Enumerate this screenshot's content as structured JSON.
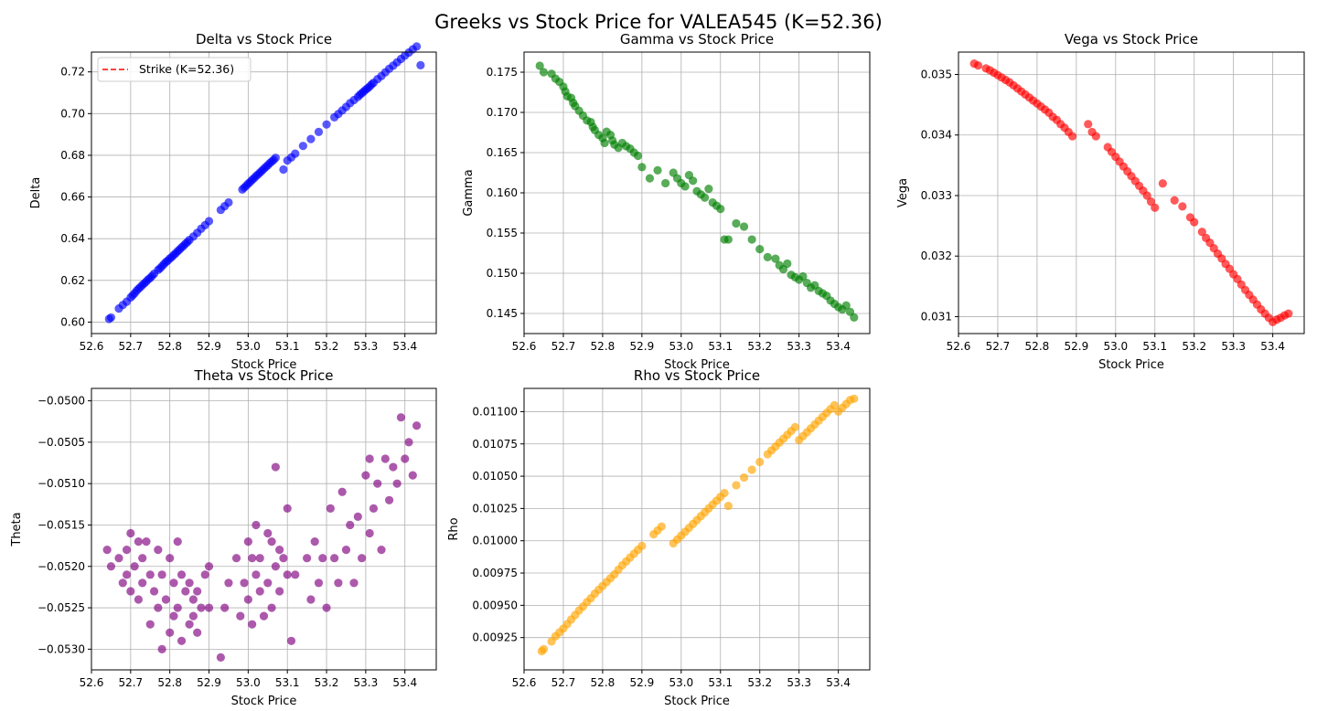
{
  "figure_title": "Greeks vs Stock Price for VALEA545 (K=52.36)",
  "chart_data": [
    {
      "id": "delta",
      "type": "scatter",
      "title": "Delta vs Stock Price",
      "xlabel": "Stock Price",
      "ylabel": "Delta",
      "xlim": [
        52.6,
        53.48
      ],
      "ylim": [
        0.5945,
        0.7295
      ],
      "xticks": [
        "52.6",
        "52.7",
        "52.8",
        "52.9",
        "53.0",
        "53.1",
        "53.2",
        "53.3",
        "53.4"
      ],
      "yticks": [
        "0.60",
        "0.62",
        "0.64",
        "0.66",
        "0.68",
        "0.70",
        "0.72"
      ],
      "grid": true,
      "color": "#0000ff",
      "legend": {
        "placement": "upper-left",
        "entries": [
          {
            "label": "Strike (K=52.36)",
            "color": "#ff0000",
            "style": "dashed"
          }
        ]
      },
      "trend": "linear-increasing",
      "x": [
        52.645,
        52.65,
        52.67,
        52.68,
        52.69,
        52.7,
        52.705,
        52.71,
        52.715,
        52.72,
        52.725,
        52.73,
        52.735,
        52.74,
        52.745,
        52.75,
        52.755,
        52.76,
        52.77,
        52.775,
        52.78,
        52.785,
        52.79,
        52.795,
        52.8,
        52.805,
        52.81,
        52.815,
        52.82,
        52.825,
        52.83,
        52.835,
        52.84,
        52.845,
        52.85,
        52.86,
        52.87,
        52.88,
        52.89,
        52.9,
        52.93,
        52.94,
        52.95,
        52.985,
        52.99,
        52.995,
        53.0,
        53.005,
        53.01,
        53.015,
        53.02,
        53.025,
        53.03,
        53.035,
        53.04,
        53.045,
        53.05,
        53.055,
        53.06,
        53.065,
        53.07,
        53.09,
        53.1,
        53.11,
        53.12,
        53.14,
        53.16,
        53.18,
        53.2,
        53.22,
        53.23,
        53.24,
        53.25,
        53.26,
        53.27,
        53.28,
        53.285,
        53.29,
        53.295,
        53.3,
        53.305,
        53.31,
        53.315,
        53.32,
        53.33,
        53.34,
        53.35,
        53.36,
        53.37,
        53.38,
        53.39,
        53.4,
        53.41,
        53.42,
        53.43,
        53.44
      ],
      "y": [
        0.6015,
        0.6022,
        0.6065,
        0.6082,
        0.6098,
        0.6118,
        0.6128,
        0.6138,
        0.615,
        0.616,
        0.6168,
        0.6178,
        0.6186,
        0.6195,
        0.6205,
        0.6212,
        0.6222,
        0.6232,
        0.625,
        0.6258,
        0.6268,
        0.6278,
        0.6288,
        0.6295,
        0.6305,
        0.6312,
        0.6322,
        0.633,
        0.634,
        0.6348,
        0.6358,
        0.6366,
        0.6376,
        0.6384,
        0.6394,
        0.641,
        0.6428,
        0.6448,
        0.6465,
        0.6484,
        0.6538,
        0.6556,
        0.6574,
        0.6636,
        0.6645,
        0.6654,
        0.6664,
        0.6672,
        0.6682,
        0.669,
        0.67,
        0.6708,
        0.6717,
        0.6726,
        0.6735,
        0.6744,
        0.6752,
        0.6762,
        0.677,
        0.6778,
        0.6788,
        0.6732,
        0.6775,
        0.679,
        0.6808,
        0.6845,
        0.6878,
        0.6912,
        0.6948,
        0.6982,
        0.6998,
        0.7015,
        0.7032,
        0.705,
        0.7065,
        0.708,
        0.709,
        0.7098,
        0.7106,
        0.7115,
        0.7122,
        0.713,
        0.714,
        0.7148,
        0.7165,
        0.718,
        0.7198,
        0.7215,
        0.723,
        0.7246,
        0.7262,
        0.7278,
        0.7293,
        0.7308,
        0.7322,
        0.7232
      ]
    },
    {
      "id": "gamma",
      "type": "scatter",
      "title": "Gamma vs Stock Price",
      "xlabel": "Stock Price",
      "ylabel": "Gamma",
      "xlim": [
        52.6,
        53.48
      ],
      "ylim": [
        0.1425,
        0.1775
      ],
      "xticks": [
        "52.6",
        "52.7",
        "52.8",
        "52.9",
        "53.0",
        "53.1",
        "53.2",
        "53.3",
        "53.4"
      ],
      "yticks": [
        "0.145",
        "0.150",
        "0.155",
        "0.160",
        "0.165",
        "0.170",
        "0.175"
      ],
      "grid": true,
      "color": "#008000",
      "trend": "linear-decreasing",
      "x": [
        52.64,
        52.65,
        52.67,
        52.68,
        52.69,
        52.7,
        52.705,
        52.71,
        52.72,
        52.725,
        52.73,
        52.74,
        52.75,
        52.76,
        52.77,
        52.775,
        52.78,
        52.79,
        52.8,
        52.805,
        52.81,
        52.82,
        52.825,
        52.83,
        52.84,
        52.85,
        52.86,
        52.87,
        52.88,
        52.89,
        52.9,
        52.92,
        52.94,
        52.96,
        52.98,
        52.99,
        53.0,
        53.01,
        53.02,
        53.03,
        53.04,
        53.05,
        53.06,
        53.07,
        53.08,
        53.09,
        53.1,
        53.11,
        53.12,
        53.14,
        53.16,
        53.18,
        53.2,
        53.22,
        53.24,
        53.25,
        53.26,
        53.27,
        53.28,
        53.29,
        53.3,
        53.31,
        53.32,
        53.33,
        53.34,
        53.35,
        53.36,
        53.37,
        53.38,
        53.39,
        53.4,
        53.41,
        53.42,
        53.43,
        53.44
      ],
      "y": [
        0.1758,
        0.175,
        0.1748,
        0.1742,
        0.1738,
        0.1732,
        0.1726,
        0.172,
        0.1718,
        0.1712,
        0.1708,
        0.1702,
        0.1696,
        0.169,
        0.1688,
        0.1682,
        0.1678,
        0.1672,
        0.1668,
        0.1662,
        0.1676,
        0.1672,
        0.1665,
        0.166,
        0.1656,
        0.1662,
        0.1658,
        0.1655,
        0.165,
        0.1646,
        0.1632,
        0.1618,
        0.1628,
        0.1612,
        0.1625,
        0.1618,
        0.1612,
        0.1608,
        0.1622,
        0.1615,
        0.1602,
        0.1598,
        0.1594,
        0.1605,
        0.1588,
        0.1584,
        0.158,
        0.1542,
        0.1542,
        0.1562,
        0.1558,
        0.1542,
        0.153,
        0.152,
        0.1518,
        0.151,
        0.1505,
        0.1512,
        0.1498,
        0.1495,
        0.1492,
        0.1496,
        0.1488,
        0.1482,
        0.1485,
        0.1478,
        0.1475,
        0.1472,
        0.1466,
        0.1462,
        0.1458,
        0.1455,
        0.146,
        0.1452,
        0.1445
      ]
    },
    {
      "id": "vega",
      "type": "scatter",
      "title": "Vega vs Stock Price",
      "xlabel": "Stock Price",
      "ylabel": "Vega",
      "xlim": [
        52.6,
        53.48
      ],
      "ylim": [
        0.03072,
        0.03537
      ],
      "xticks": [
        "52.6",
        "52.7",
        "52.8",
        "52.9",
        "53.0",
        "53.1",
        "53.2",
        "53.3",
        "53.4"
      ],
      "yticks": [
        "0.031",
        "0.032",
        "0.033",
        "0.034",
        "0.035"
      ],
      "grid": true,
      "color": "#ff0000",
      "trend": "concave-decreasing",
      "x": [
        52.64,
        52.65,
        52.67,
        52.68,
        52.69,
        52.7,
        52.71,
        52.72,
        52.73,
        52.74,
        52.75,
        52.76,
        52.77,
        52.78,
        52.79,
        52.8,
        52.81,
        52.82,
        52.83,
        52.84,
        52.85,
        52.86,
        52.87,
        52.88,
        52.89,
        52.93,
        52.94,
        52.95,
        52.98,
        52.99,
        53.0,
        53.01,
        53.02,
        53.03,
        53.04,
        53.05,
        53.06,
        53.07,
        53.08,
        53.09,
        53.1,
        53.12,
        53.15,
        53.17,
        53.19,
        53.2,
        53.22,
        53.23,
        53.24,
        53.25,
        53.26,
        53.27,
        53.28,
        53.29,
        53.3,
        53.31,
        53.32,
        53.33,
        53.34,
        53.35,
        53.36,
        53.37,
        53.38,
        53.39,
        53.4,
        53.41,
        53.42,
        53.43,
        53.44
      ],
      "y": [
        0.03518,
        0.03515,
        0.0351,
        0.03507,
        0.03503,
        0.03499,
        0.03495,
        0.03491,
        0.03487,
        0.03482,
        0.03477,
        0.03472,
        0.03467,
        0.03462,
        0.03457,
        0.03452,
        0.03447,
        0.03442,
        0.03437,
        0.0343,
        0.03425,
        0.03418,
        0.03412,
        0.03405,
        0.03398,
        0.03418,
        0.03405,
        0.03398,
        0.0338,
        0.03372,
        0.03364,
        0.03356,
        0.03348,
        0.0334,
        0.03332,
        0.03324,
        0.03316,
        0.03308,
        0.033,
        0.0329,
        0.0328,
        0.0332,
        0.03292,
        0.03282,
        0.03264,
        0.03256,
        0.0324,
        0.0323,
        0.03222,
        0.03213,
        0.03204,
        0.03196,
        0.03187,
        0.03179,
        0.0317,
        0.03162,
        0.03153,
        0.03144,
        0.03136,
        0.03128,
        0.0312,
        0.03112,
        0.03105,
        0.03098,
        0.03091,
        0.03095,
        0.03098,
        0.03102,
        0.03105
      ]
    },
    {
      "id": "theta",
      "type": "scatter",
      "title": "Theta vs Stock Price",
      "xlabel": "Stock Price",
      "ylabel": "Theta",
      "xlim": [
        52.6,
        53.48
      ],
      "ylim": [
        -0.05325,
        -0.04985
      ],
      "xticks": [
        "52.6",
        "52.7",
        "52.8",
        "52.9",
        "53.0",
        "53.1",
        "53.2",
        "53.3",
        "53.4"
      ],
      "yticks": [
        "−0.0530",
        "−0.0525",
        "−0.0520",
        "−0.0515",
        "−0.0510",
        "−0.0505",
        "−0.0500"
      ],
      "grid": true,
      "color": "#800080",
      "x": [
        52.64,
        52.65,
        52.67,
        52.68,
        52.69,
        52.69,
        52.7,
        52.7,
        52.71,
        52.72,
        52.72,
        52.73,
        52.73,
        52.74,
        52.75,
        52.75,
        52.76,
        52.77,
        52.77,
        52.78,
        52.78,
        52.79,
        52.8,
        52.8,
        52.81,
        52.81,
        52.82,
        52.82,
        52.83,
        52.83,
        52.84,
        52.85,
        52.85,
        52.86,
        52.86,
        52.87,
        52.87,
        52.88,
        52.89,
        52.9,
        52.9,
        52.93,
        52.94,
        52.95,
        52.97,
        52.98,
        52.99,
        53.0,
        53.0,
        53.01,
        53.01,
        53.02,
        53.02,
        53.03,
        53.03,
        53.04,
        53.05,
        53.05,
        53.06,
        53.06,
        53.07,
        53.07,
        53.08,
        53.08,
        53.09,
        53.1,
        53.1,
        53.11,
        53.12,
        53.15,
        53.16,
        53.17,
        53.18,
        53.19,
        53.2,
        53.21,
        53.22,
        53.23,
        53.24,
        53.25,
        53.26,
        53.27,
        53.28,
        53.29,
        53.3,
        53.31,
        53.31,
        53.32,
        53.33,
        53.34,
        53.35,
        53.36,
        53.37,
        53.38,
        53.39,
        53.4,
        53.41,
        53.42,
        53.43
      ],
      "y": [
        -0.0518,
        -0.052,
        -0.0519,
        -0.0522,
        -0.0518,
        -0.0521,
        -0.0516,
        -0.0523,
        -0.052,
        -0.0517,
        -0.0524,
        -0.0519,
        -0.0522,
        -0.0517,
        -0.0521,
        -0.0527,
        -0.0523,
        -0.0518,
        -0.0525,
        -0.0521,
        -0.053,
        -0.0524,
        -0.0519,
        -0.0528,
        -0.0522,
        -0.0526,
        -0.0517,
        -0.0525,
        -0.0521,
        -0.0529,
        -0.0523,
        -0.0527,
        -0.0522,
        -0.0524,
        -0.0526,
        -0.0523,
        -0.0528,
        -0.0525,
        -0.0521,
        -0.0525,
        -0.052,
        -0.0531,
        -0.0525,
        -0.0522,
        -0.0519,
        -0.0526,
        -0.0522,
        -0.0517,
        -0.0524,
        -0.0519,
        -0.0527,
        -0.0521,
        -0.0515,
        -0.0523,
        -0.0519,
        -0.0526,
        -0.0516,
        -0.0522,
        -0.0517,
        -0.0525,
        -0.0508,
        -0.052,
        -0.0518,
        -0.0523,
        -0.0519,
        -0.0513,
        -0.0521,
        -0.0529,
        -0.0521,
        -0.0519,
        -0.0524,
        -0.0517,
        -0.0522,
        -0.0519,
        -0.0525,
        -0.0513,
        -0.0519,
        -0.0522,
        -0.0511,
        -0.0518,
        -0.0515,
        -0.0522,
        -0.0514,
        -0.0519,
        -0.0509,
        -0.0516,
        -0.0507,
        -0.0513,
        -0.051,
        -0.0518,
        -0.0507,
        -0.0512,
        -0.0508,
        -0.051,
        -0.0502,
        -0.0507,
        -0.0505,
        -0.0509,
        -0.0503
      ]
    },
    {
      "id": "rho",
      "type": "scatter",
      "title": "Rho vs Stock Price",
      "xlabel": "Stock Price",
      "ylabel": "Rho",
      "xlim": [
        52.6,
        53.48
      ],
      "ylim": [
        0.009,
        0.01118
      ],
      "xticks": [
        "52.6",
        "52.7",
        "52.8",
        "52.9",
        "53.0",
        "53.1",
        "53.2",
        "53.3",
        "53.4"
      ],
      "yticks": [
        "0.00925",
        "0.00950",
        "0.00975",
        "0.01000",
        "0.01025",
        "0.01050",
        "0.01075",
        "0.01100"
      ],
      "grid": true,
      "color": "#ffa500",
      "trend": "linear-increasing",
      "x": [
        52.645,
        52.65,
        52.67,
        52.68,
        52.69,
        52.7,
        52.71,
        52.72,
        52.73,
        52.74,
        52.75,
        52.76,
        52.77,
        52.78,
        52.79,
        52.8,
        52.81,
        52.82,
        52.83,
        52.84,
        52.85,
        52.86,
        52.87,
        52.88,
        52.89,
        52.9,
        52.93,
        52.94,
        52.95,
        52.98,
        52.99,
        53.0,
        53.01,
        53.02,
        53.03,
        53.04,
        53.05,
        53.06,
        53.07,
        53.08,
        53.09,
        53.1,
        53.11,
        53.12,
        53.14,
        53.16,
        53.18,
        53.2,
        53.22,
        53.23,
        53.24,
        53.25,
        53.26,
        53.27,
        53.28,
        53.29,
        53.3,
        53.31,
        53.32,
        53.33,
        53.34,
        53.35,
        53.36,
        53.37,
        53.38,
        53.39,
        53.4,
        53.41,
        53.42,
        53.43,
        53.44
      ],
      "y": [
        0.009145,
        0.00916,
        0.00922,
        0.00926,
        0.00929,
        0.00932,
        0.009355,
        0.00939,
        0.009425,
        0.00946,
        0.00949,
        0.009525,
        0.009555,
        0.00959,
        0.00962,
        0.00965,
        0.00968,
        0.00971,
        0.00974,
        0.009775,
        0.00981,
        0.00984,
        0.00987,
        0.0099,
        0.00993,
        0.00996,
        0.01005,
        0.01008,
        0.01011,
        0.00998,
        0.01001,
        0.01004,
        0.01007,
        0.0101,
        0.01013,
        0.01016,
        0.01019,
        0.01022,
        0.01025,
        0.01028,
        0.01031,
        0.01034,
        0.01037,
        0.01027,
        0.01043,
        0.01049,
        0.01055,
        0.01061,
        0.01067,
        0.0107,
        0.01073,
        0.01076,
        0.01079,
        0.01082,
        0.01085,
        0.01088,
        0.01078,
        0.01081,
        0.01084,
        0.01087,
        0.0109,
        0.01093,
        0.01096,
        0.01099,
        0.01102,
        0.01105,
        0.011,
        0.01103,
        0.01106,
        0.01109,
        0.0111
      ]
    }
  ]
}
